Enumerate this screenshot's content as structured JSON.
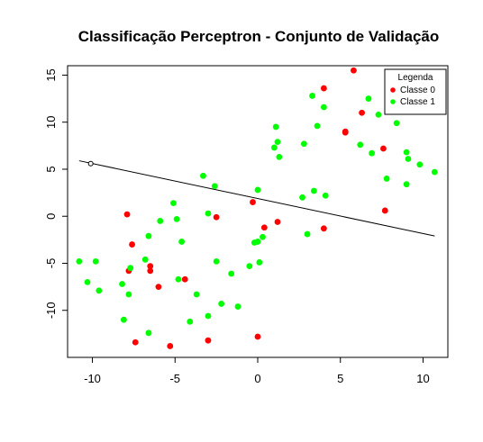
{
  "chart_data": {
    "type": "scatter",
    "title": "Classificação Perceptron - Conjunto de Validação",
    "xlabel": "",
    "ylabel": "",
    "xlim": [
      -11.5,
      11.5
    ],
    "ylim": [
      -15,
      16
    ],
    "x_ticks": [
      -10,
      -5,
      0,
      5,
      10
    ],
    "y_ticks": [
      -10,
      -5,
      0,
      5,
      10,
      15
    ],
    "legend": {
      "title": "Legenda",
      "placement": "top-right",
      "entries": [
        {
          "label": "Classe 0",
          "color": "#ff0000"
        },
        {
          "label": "Classe 1",
          "color": "#00ff00"
        }
      ]
    },
    "series": [
      {
        "name": "Classe 0",
        "color": "#ff0000",
        "points": [
          [
            -7.9,
            0.2
          ],
          [
            -7.8,
            -5.8
          ],
          [
            -7.6,
            -3.0
          ],
          [
            -7.4,
            -13.4
          ],
          [
            -6.5,
            -5.3
          ],
          [
            -6.5,
            -5.8
          ],
          [
            -6.0,
            -7.5
          ],
          [
            -5.3,
            -13.8
          ],
          [
            -4.4,
            -6.7
          ],
          [
            -3.0,
            -13.2
          ],
          [
            -2.5,
            -0.1
          ],
          [
            -0.3,
            1.5
          ],
          [
            0.0,
            -12.8
          ],
          [
            0.4,
            -1.2
          ],
          [
            1.2,
            -0.6
          ],
          [
            4.0,
            13.6
          ],
          [
            4.0,
            -1.3
          ],
          [
            5.3,
            8.9
          ],
          [
            5.3,
            9.0
          ],
          [
            5.8,
            15.5
          ],
          [
            6.3,
            11.0
          ],
          [
            7.6,
            7.2
          ],
          [
            7.7,
            0.6
          ]
        ]
      },
      {
        "name": "Classe 1",
        "color": "#00ff00",
        "points": [
          [
            -10.8,
            -4.8
          ],
          [
            -10.3,
            -7.0
          ],
          [
            -9.8,
            -4.8
          ],
          [
            -9.6,
            -7.9
          ],
          [
            -8.2,
            -7.2
          ],
          [
            -8.1,
            -11.0
          ],
          [
            -7.8,
            -8.3
          ],
          [
            -7.7,
            -5.5
          ],
          [
            -6.8,
            -4.6
          ],
          [
            -6.6,
            -2.1
          ],
          [
            -6.6,
            -12.4
          ],
          [
            -5.9,
            -0.5
          ],
          [
            -5.1,
            1.4
          ],
          [
            -4.9,
            -0.3
          ],
          [
            -4.8,
            -6.7
          ],
          [
            -4.6,
            -2.7
          ],
          [
            -4.1,
            -11.2
          ],
          [
            -3.7,
            -8.3
          ],
          [
            -3.3,
            4.3
          ],
          [
            -3.0,
            0.3
          ],
          [
            -3.0,
            -10.6
          ],
          [
            -2.6,
            3.2
          ],
          [
            -2.5,
            -4.8
          ],
          [
            -2.2,
            -9.3
          ],
          [
            -1.6,
            -6.1
          ],
          [
            -1.2,
            -9.6
          ],
          [
            -0.5,
            -5.3
          ],
          [
            -0.2,
            -2.8
          ],
          [
            0.0,
            2.8
          ],
          [
            0.0,
            -2.7
          ],
          [
            0.1,
            -4.9
          ],
          [
            0.3,
            -2.2
          ],
          [
            1.0,
            7.3
          ],
          [
            1.1,
            9.5
          ],
          [
            1.2,
            7.9
          ],
          [
            1.3,
            6.3
          ],
          [
            2.7,
            2.0
          ],
          [
            2.8,
            7.7
          ],
          [
            3.0,
            -1.9
          ],
          [
            3.3,
            12.8
          ],
          [
            3.4,
            2.7
          ],
          [
            3.6,
            9.6
          ],
          [
            4.0,
            11.6
          ],
          [
            4.1,
            2.2
          ],
          [
            6.2,
            7.6
          ],
          [
            6.7,
            12.5
          ],
          [
            6.9,
            6.7
          ],
          [
            7.3,
            10.8
          ],
          [
            7.8,
            4.0
          ],
          [
            8.4,
            9.9
          ],
          [
            9.0,
            6.8
          ],
          [
            9.0,
            3.4
          ],
          [
            9.1,
            6.1
          ],
          [
            9.8,
            5.5
          ],
          [
            10.7,
            4.7
          ]
        ]
      }
    ],
    "decision_boundary": {
      "type": "line",
      "color": "#000000",
      "x": [
        -10.8,
        10.7
      ],
      "y": [
        5.9,
        -2.1
      ]
    },
    "annotation": {
      "marker": "open-circle",
      "x": -10.1,
      "y": 5.6
    },
    "grid": false
  }
}
